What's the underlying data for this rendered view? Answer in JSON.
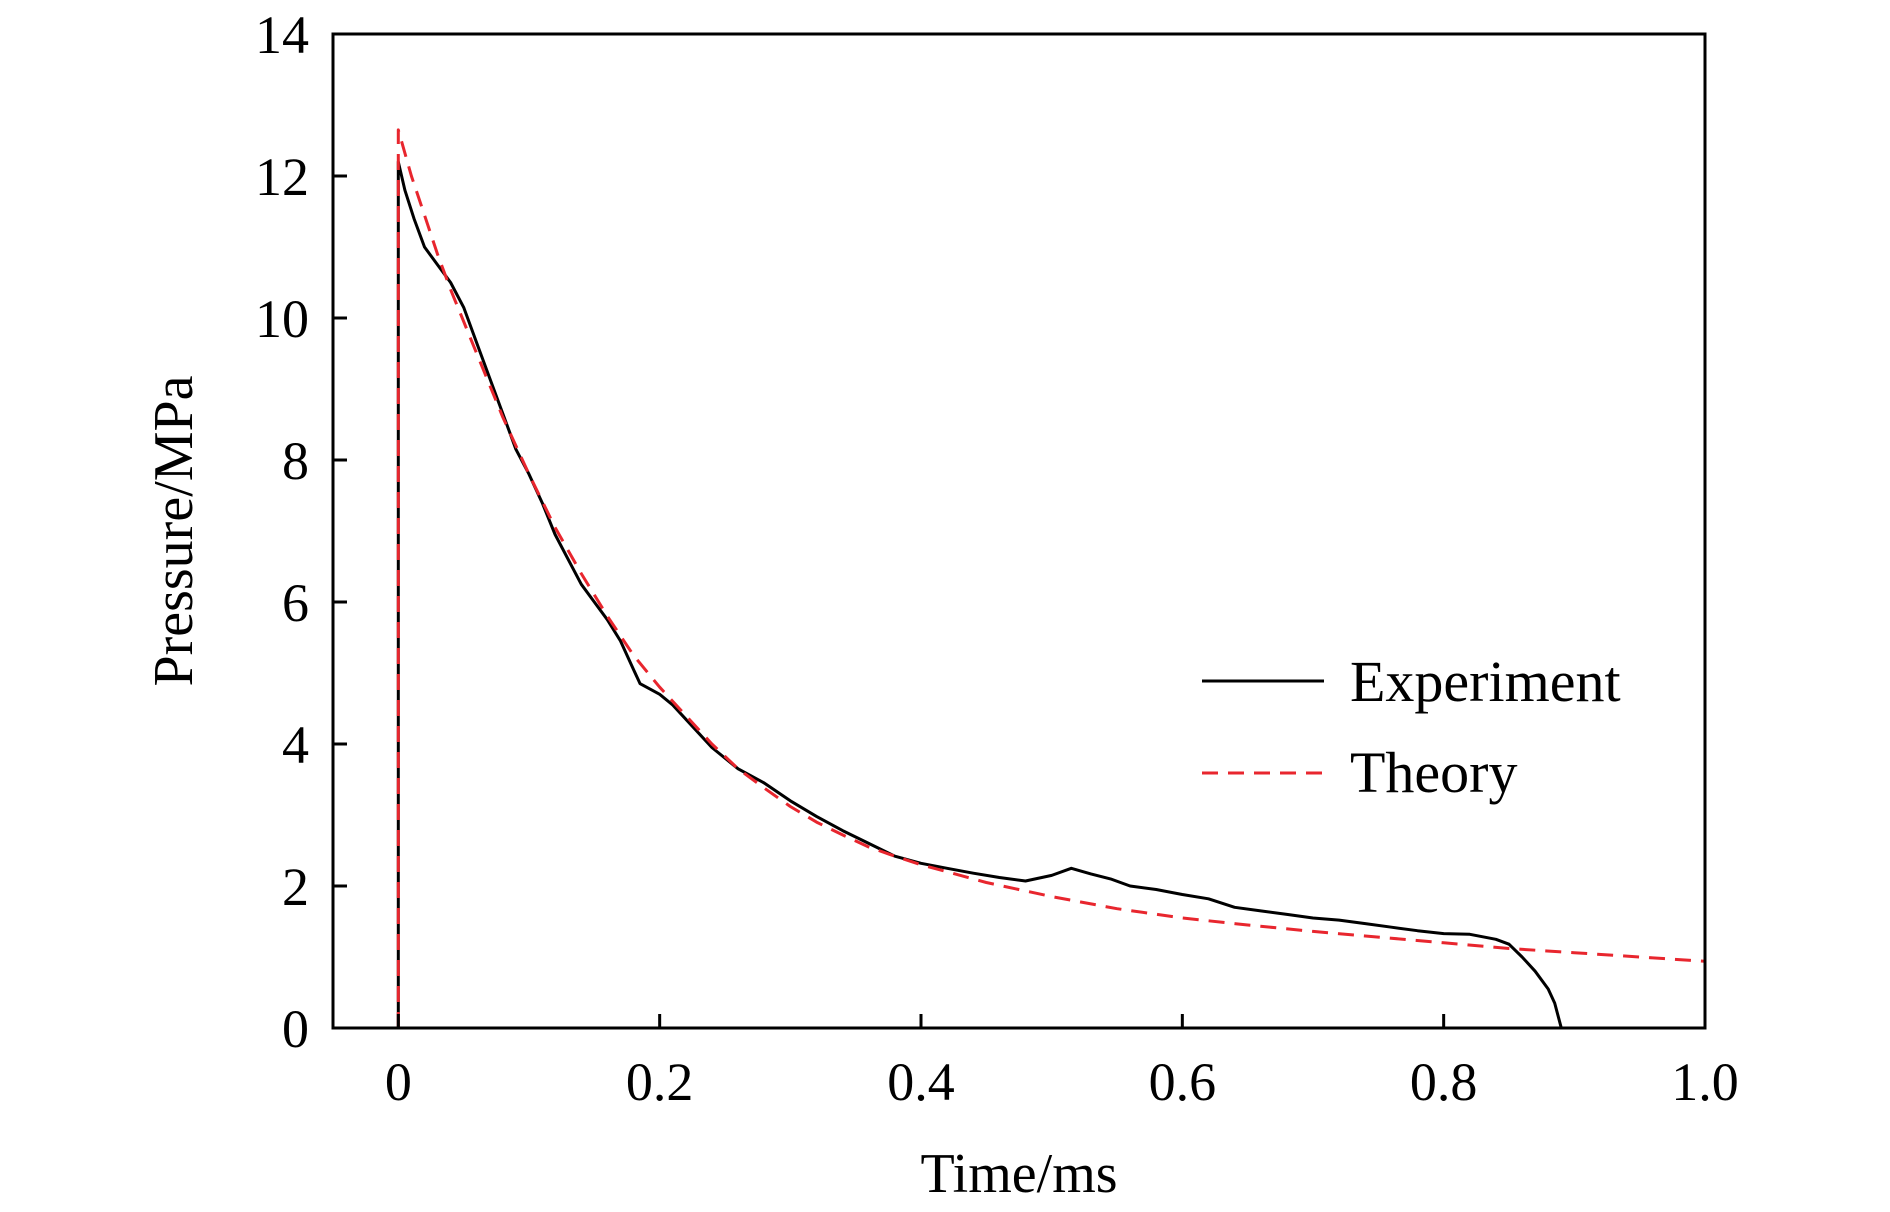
{
  "chart_data": {
    "type": "line",
    "xlabel": "Time/ms",
    "ylabel": "Pressure/MPa",
    "xlim": [
      -0.05,
      1.0
    ],
    "ylim": [
      0,
      14
    ],
    "x_ticks": [
      0,
      0.2,
      0.4,
      0.6,
      0.8,
      1.0
    ],
    "x_tick_labels": [
      "0",
      "0.2",
      "0.4",
      "0.6",
      "0.8",
      "1.0"
    ],
    "y_ticks": [
      0,
      2,
      4,
      6,
      8,
      10,
      12,
      14
    ],
    "y_tick_labels": [
      "0",
      "2",
      "4",
      "6",
      "8",
      "10",
      "12",
      "14"
    ],
    "grid": false,
    "legend_position": "center-right",
    "series": [
      {
        "name": "Experiment",
        "color": "#000000",
        "style": "solid",
        "points": [
          [
            0.0,
            0.0
          ],
          [
            0.0,
            12.2
          ],
          [
            0.005,
            11.8
          ],
          [
            0.012,
            11.4
          ],
          [
            0.02,
            11.0
          ],
          [
            0.03,
            10.75
          ],
          [
            0.04,
            10.5
          ],
          [
            0.05,
            10.15
          ],
          [
            0.06,
            9.65
          ],
          [
            0.07,
            9.15
          ],
          [
            0.08,
            8.65
          ],
          [
            0.09,
            8.15
          ],
          [
            0.1,
            7.8
          ],
          [
            0.11,
            7.4
          ],
          [
            0.12,
            6.95
          ],
          [
            0.13,
            6.6
          ],
          [
            0.14,
            6.25
          ],
          [
            0.15,
            6.0
          ],
          [
            0.16,
            5.75
          ],
          [
            0.17,
            5.45
          ],
          [
            0.18,
            5.05
          ],
          [
            0.185,
            4.85
          ],
          [
            0.19,
            4.8
          ],
          [
            0.2,
            4.7
          ],
          [
            0.21,
            4.55
          ],
          [
            0.22,
            4.35
          ],
          [
            0.24,
            3.95
          ],
          [
            0.26,
            3.65
          ],
          [
            0.28,
            3.45
          ],
          [
            0.3,
            3.2
          ],
          [
            0.32,
            2.98
          ],
          [
            0.34,
            2.78
          ],
          [
            0.36,
            2.6
          ],
          [
            0.38,
            2.42
          ],
          [
            0.4,
            2.32
          ],
          [
            0.42,
            2.25
          ],
          [
            0.44,
            2.18
          ],
          [
            0.46,
            2.12
          ],
          [
            0.48,
            2.07
          ],
          [
            0.5,
            2.15
          ],
          [
            0.515,
            2.25
          ],
          [
            0.53,
            2.17
          ],
          [
            0.545,
            2.1
          ],
          [
            0.56,
            2.0
          ],
          [
            0.58,
            1.95
          ],
          [
            0.6,
            1.88
          ],
          [
            0.62,
            1.82
          ],
          [
            0.64,
            1.7
          ],
          [
            0.66,
            1.65
          ],
          [
            0.68,
            1.6
          ],
          [
            0.7,
            1.55
          ],
          [
            0.72,
            1.52
          ],
          [
            0.74,
            1.47
          ],
          [
            0.76,
            1.42
          ],
          [
            0.78,
            1.37
          ],
          [
            0.8,
            1.33
          ],
          [
            0.82,
            1.32
          ],
          [
            0.84,
            1.25
          ],
          [
            0.85,
            1.18
          ],
          [
            0.86,
            1.0
          ],
          [
            0.87,
            0.8
          ],
          [
            0.88,
            0.55
          ],
          [
            0.885,
            0.35
          ],
          [
            0.89,
            0.0
          ]
        ]
      },
      {
        "name": "Theory",
        "color": "#e8262e",
        "style": "dashed",
        "points": [
          [
            0.0,
            0.0
          ],
          [
            0.0,
            12.65
          ],
          [
            0.01,
            12.0
          ],
          [
            0.02,
            11.45
          ],
          [
            0.03,
            10.9
          ],
          [
            0.04,
            10.4
          ],
          [
            0.05,
            9.95
          ],
          [
            0.06,
            9.5
          ],
          [
            0.07,
            9.05
          ],
          [
            0.08,
            8.6
          ],
          [
            0.09,
            8.2
          ],
          [
            0.1,
            7.8
          ],
          [
            0.12,
            7.05
          ],
          [
            0.14,
            6.4
          ],
          [
            0.16,
            5.8
          ],
          [
            0.18,
            5.25
          ],
          [
            0.2,
            4.8
          ],
          [
            0.22,
            4.4
          ],
          [
            0.24,
            4.0
          ],
          [
            0.26,
            3.65
          ],
          [
            0.28,
            3.38
          ],
          [
            0.3,
            3.12
          ],
          [
            0.32,
            2.9
          ],
          [
            0.34,
            2.72
          ],
          [
            0.36,
            2.55
          ],
          [
            0.38,
            2.42
          ],
          [
            0.4,
            2.3
          ],
          [
            0.45,
            2.05
          ],
          [
            0.5,
            1.85
          ],
          [
            0.55,
            1.68
          ],
          [
            0.6,
            1.55
          ],
          [
            0.65,
            1.45
          ],
          [
            0.7,
            1.36
          ],
          [
            0.75,
            1.28
          ],
          [
            0.8,
            1.2
          ],
          [
            0.85,
            1.12
          ],
          [
            0.9,
            1.06
          ],
          [
            0.95,
            1.0
          ],
          [
            1.0,
            0.94
          ]
        ]
      }
    ]
  }
}
